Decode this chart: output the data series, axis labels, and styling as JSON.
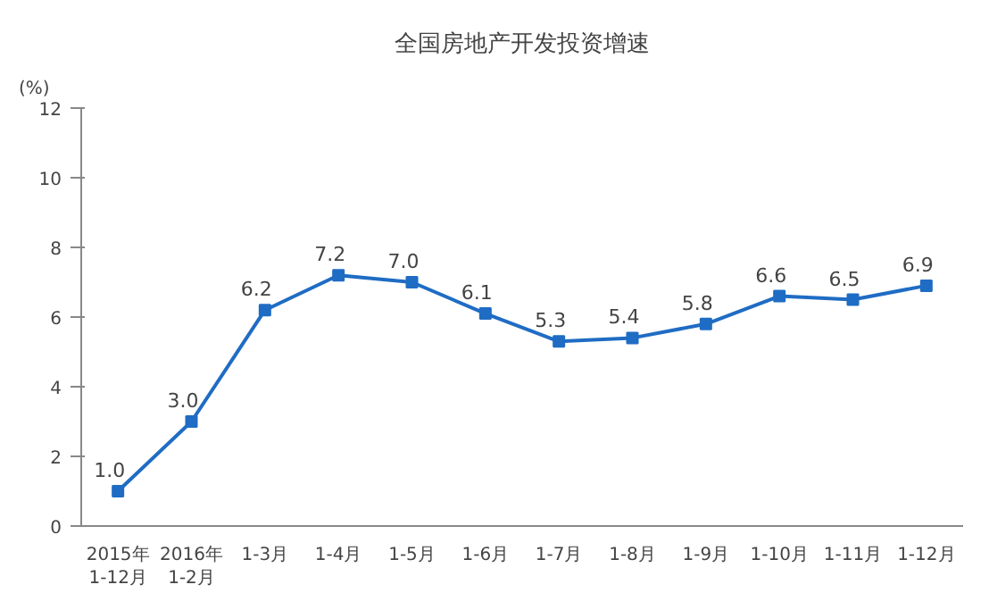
{
  "chart_data": {
    "type": "line",
    "title": "全国房地产开发投资增速",
    "ylabel": "(%)",
    "categories": [
      "2015年\n1-12月",
      "2016年\n1-2月",
      "1-3月",
      "1-4月",
      "1-5月",
      "1-6月",
      "1-7月",
      "1-8月",
      "1-9月",
      "1-10月",
      "1-11月",
      "1-12月"
    ],
    "series": [
      {
        "color": "#1f6cc4",
        "values": [
          1.0,
          3.0,
          6.2,
          7.2,
          7.0,
          6.1,
          5.3,
          5.4,
          5.8,
          6.6,
          6.5,
          6.9
        ],
        "value_labels": [
          "1.0",
          "3.0",
          "6.2",
          "7.2",
          "7.0",
          "6.1",
          "5.3",
          "5.4",
          "5.8",
          "6.6",
          "6.5",
          "6.9"
        ]
      }
    ],
    "ylim": [
      0,
      12
    ],
    "yticks": [
      0,
      2,
      4,
      6,
      8,
      10,
      12
    ],
    "grid": false,
    "marker": "square",
    "line_style": "solid"
  }
}
